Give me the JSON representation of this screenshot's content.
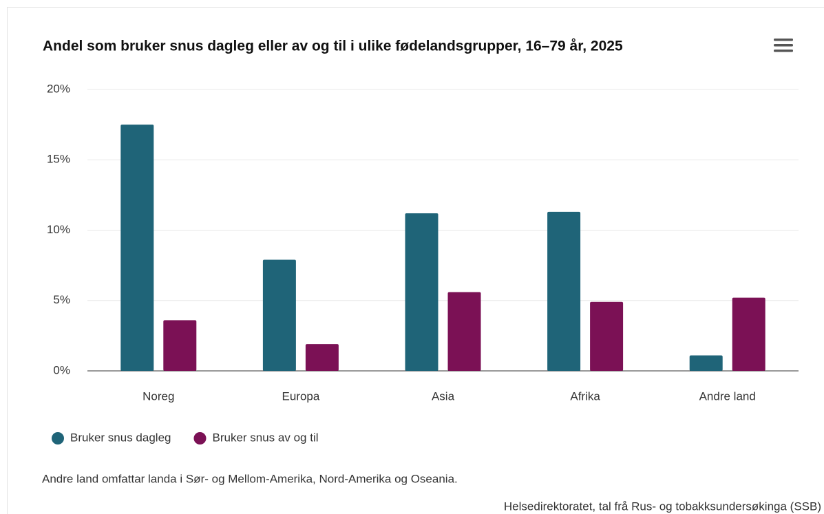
{
  "chart_data": {
    "type": "bar",
    "title": "Andel som bruker snus dagleg eller av og til i ulike fødelandsgrupper, 16–79 år, 2025",
    "categories": [
      "Noreg",
      "Europa",
      "Asia",
      "Afrika",
      "Andre land"
    ],
    "series": [
      {
        "name": "Bruker snus dagleg",
        "color": "#1f6478",
        "values": [
          17.5,
          7.9,
          11.2,
          11.3,
          1.1
        ]
      },
      {
        "name": "Bruker snus av og til",
        "color": "#7b1155",
        "values": [
          3.6,
          1.9,
          5.6,
          4.9,
          5.2
        ]
      }
    ],
    "ylim": [
      0,
      20
    ],
    "yticks": [
      {
        "value": 0,
        "label": "0%"
      },
      {
        "value": 5,
        "label": "5%"
      },
      {
        "value": 10,
        "label": "10%"
      },
      {
        "value": 15,
        "label": "15%"
      },
      {
        "value": 20,
        "label": "20%"
      }
    ],
    "grid": true,
    "legend": "bottom-left",
    "note": "Andre land omfattar landa i Sør- og Mellom-Amerika, Nord-Amerika og Oseania.",
    "source": "Helsedirektoratet, tal frå Rus- og tobakksundersøkinga (SSB)"
  }
}
